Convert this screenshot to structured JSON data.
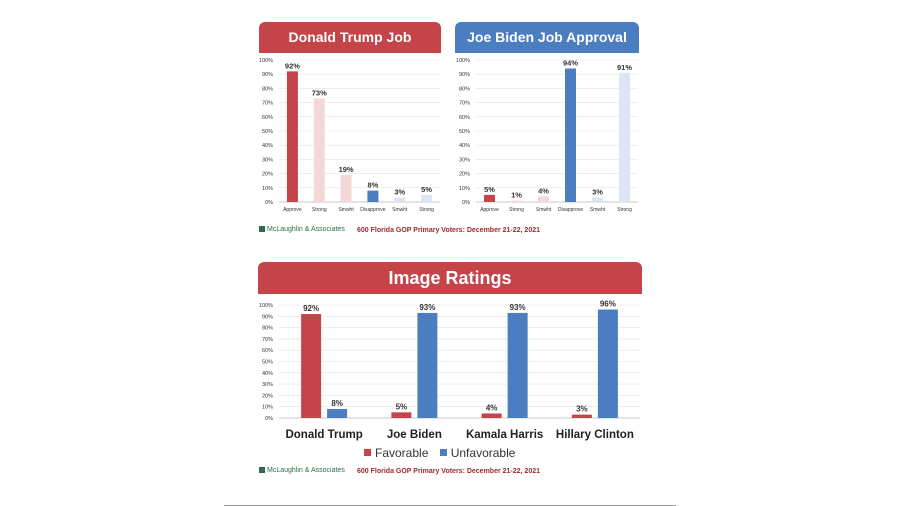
{
  "colors": {
    "red": "#c5444a",
    "blue": "#4a7ec1",
    "light_red": "#f4d8d8",
    "light_blue": "#dbe5f3",
    "grid": "#e3e3e3"
  },
  "footer": {
    "brand": "McLaughlin & Associates",
    "note": "600 Florida GOP Primary Voters: December 21-22, 2021"
  },
  "chart_data": [
    {
      "type": "bar",
      "title": "Donald Trump Job Approval",
      "categories": [
        "Approve",
        "Strong",
        "Smwht",
        "Disapprove",
        "Smwht",
        "Strong"
      ],
      "values": [
        92,
        73,
        19,
        8,
        3,
        5
      ],
      "value_labels": [
        "92%",
        "73%",
        "19%",
        "8%",
        "3%",
        "5%"
      ],
      "bar_colors": [
        "red",
        "light_red",
        "light_red",
        "blue",
        "light_blue",
        "light_blue"
      ],
      "ylim": [
        0,
        100
      ],
      "yticks": [
        "0%",
        "10%",
        "20%",
        "30%",
        "40%",
        "50%",
        "60%",
        "70%",
        "80%",
        "90%",
        "100%"
      ],
      "grid": true
    },
    {
      "type": "bar",
      "title": "Joe Biden Job Approval",
      "categories": [
        "Approve",
        "Strong",
        "Smwht",
        "Disapprove",
        "Smwht",
        "Strong"
      ],
      "values": [
        5,
        1,
        4,
        94,
        3,
        91
      ],
      "value_labels": [
        "5%",
        "1%",
        "4%",
        "94%",
        "3%",
        "91%"
      ],
      "bar_colors": [
        "red",
        "light_red",
        "light_red",
        "blue",
        "light_blue",
        "light_blue"
      ],
      "ylim": [
        0,
        100
      ],
      "yticks": [
        "0%",
        "10%",
        "20%",
        "30%",
        "40%",
        "50%",
        "60%",
        "70%",
        "80%",
        "90%",
        "100%"
      ],
      "grid": true
    },
    {
      "type": "bar",
      "title": "Image Ratings",
      "categories": [
        "Donald Trump",
        "Joe Biden",
        "Kamala Harris",
        "Hillary Clinton"
      ],
      "series": [
        {
          "name": "Favorable",
          "color": "red",
          "values": [
            92,
            5,
            4,
            3
          ],
          "labels": [
            "92%",
            "5%",
            "4%",
            "3%"
          ]
        },
        {
          "name": "Unfavorable",
          "color": "blue",
          "values": [
            8,
            93,
            93,
            96
          ],
          "labels": [
            "8%",
            "93%",
            "93%",
            "96%"
          ]
        }
      ],
      "ylim": [
        0,
        100
      ],
      "yticks": [
        "0%",
        "10%",
        "20%",
        "30%",
        "40%",
        "50%",
        "60%",
        "70%",
        "80%",
        "90%",
        "100%"
      ],
      "grid": true,
      "legend": "bottom-center"
    }
  ]
}
